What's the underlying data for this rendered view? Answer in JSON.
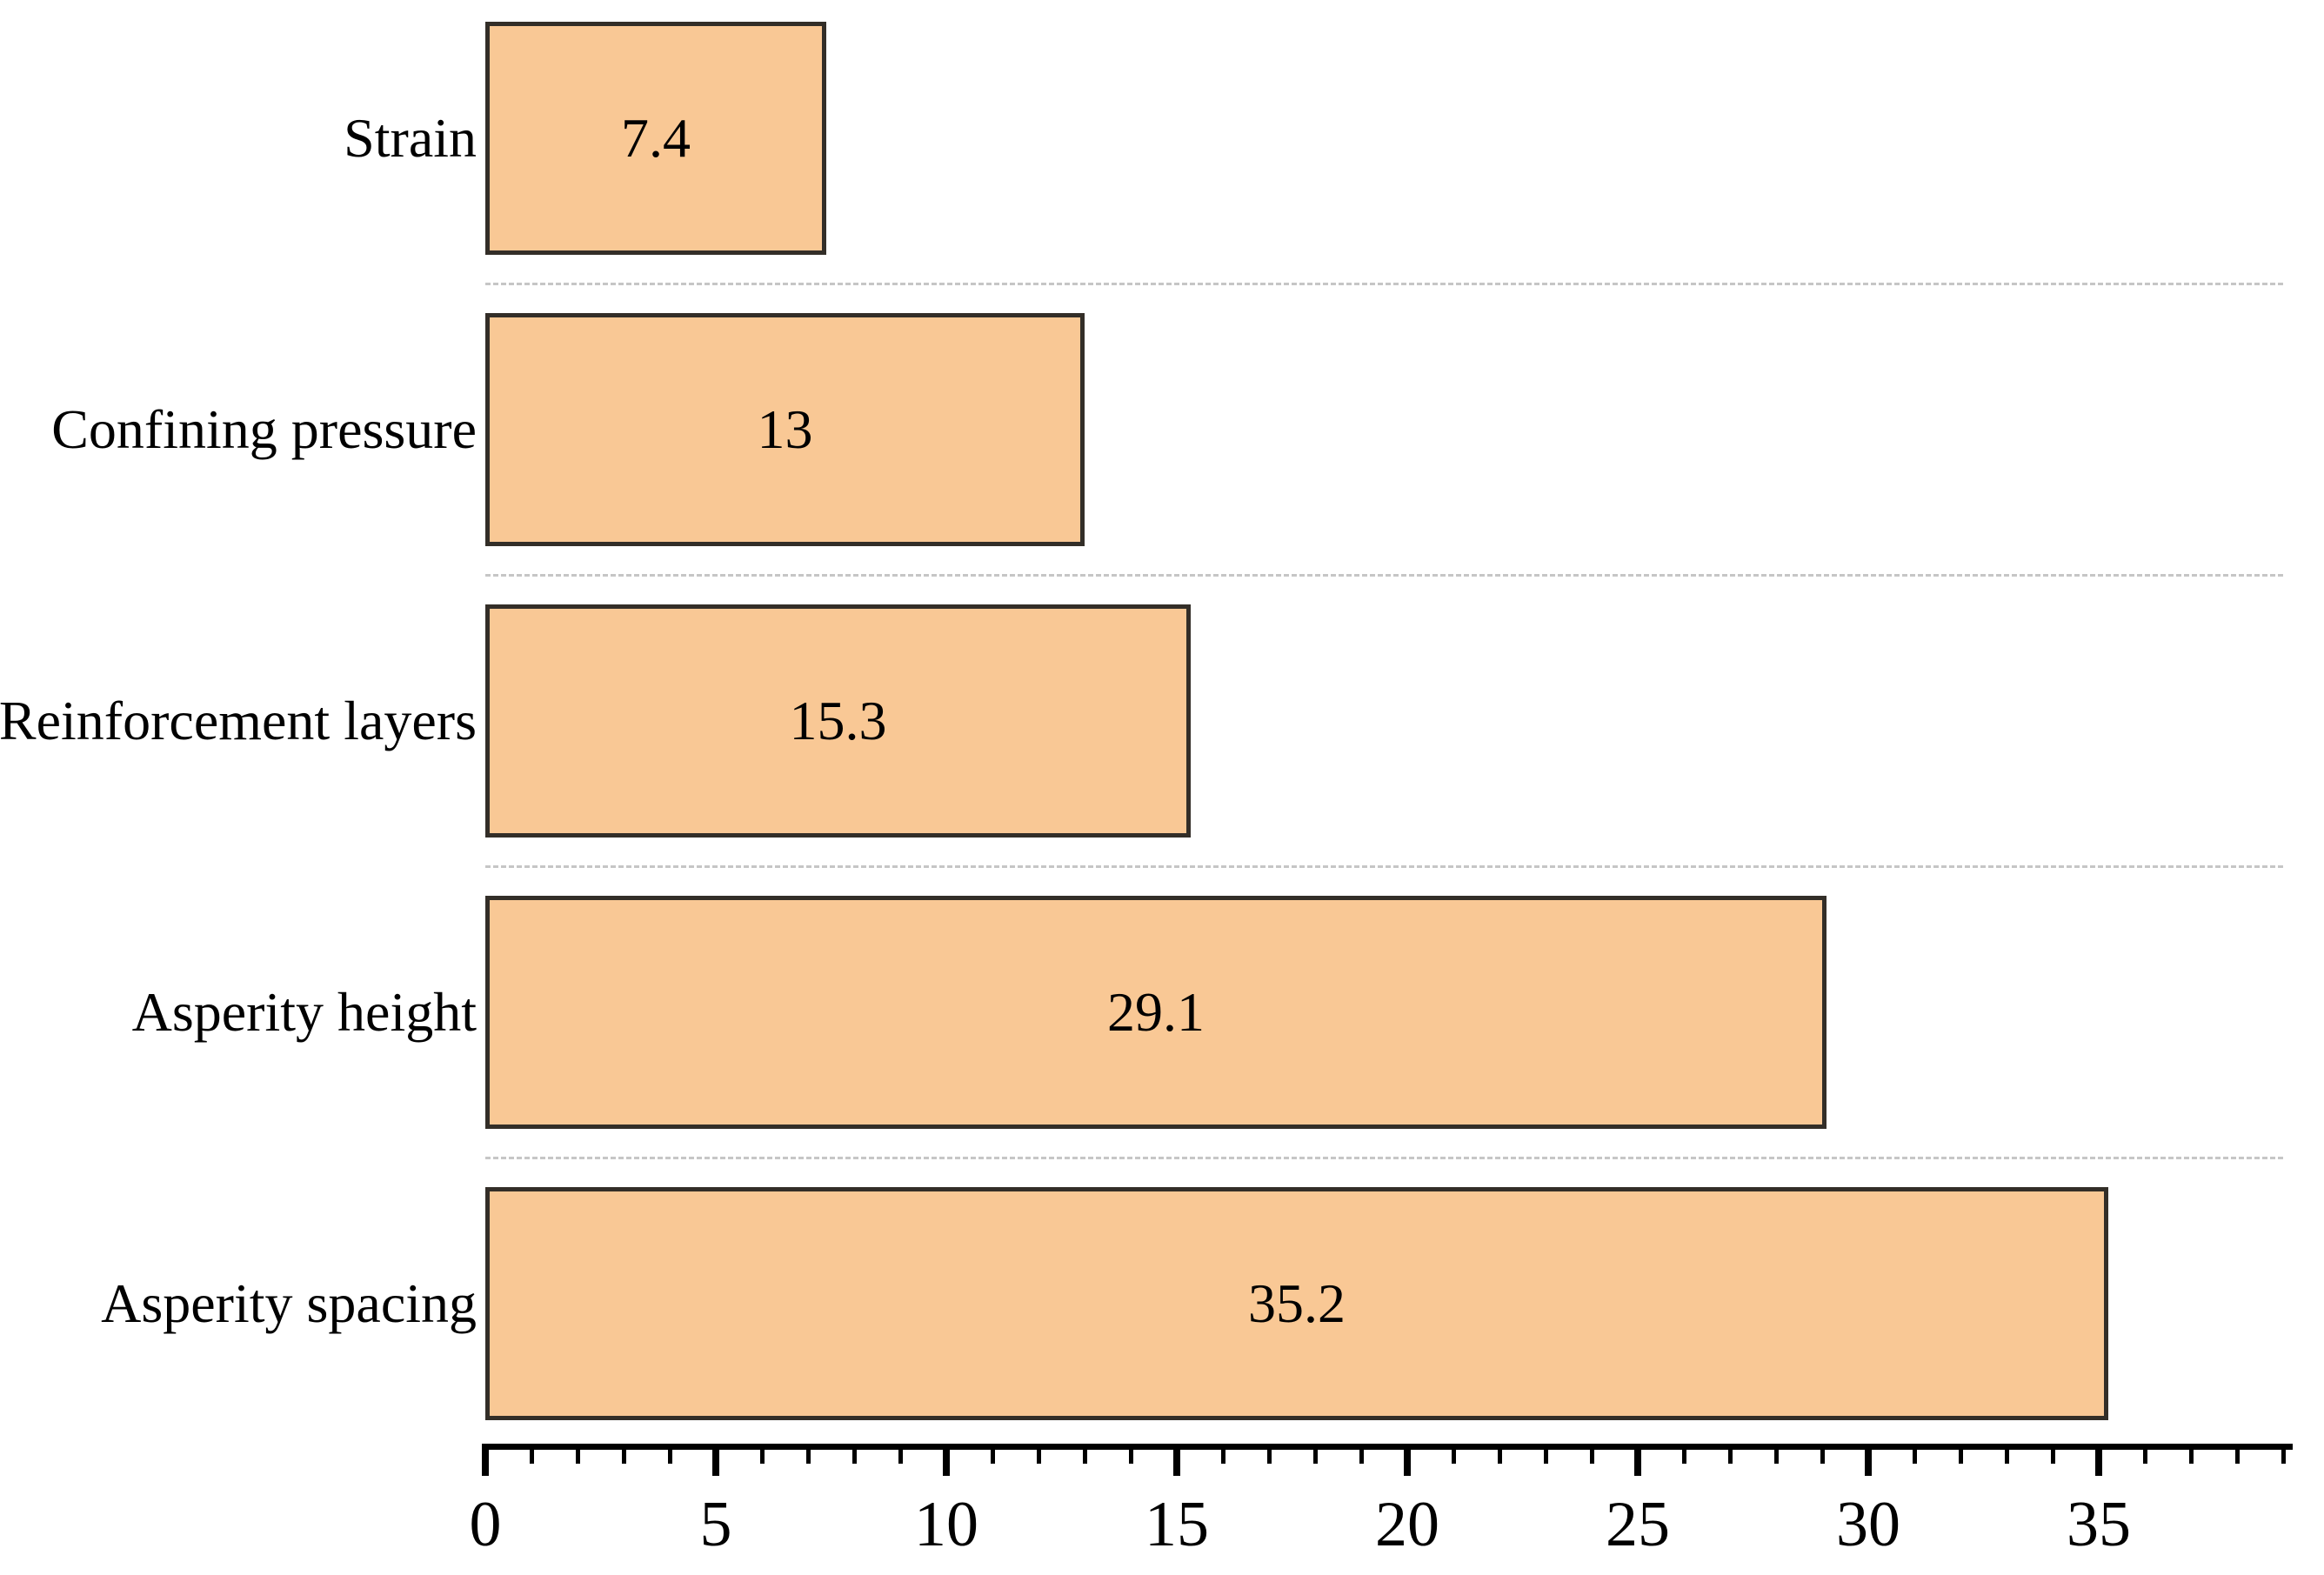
{
  "chart_data": {
    "type": "bar",
    "orientation": "horizontal",
    "title": "",
    "subtitle": "",
    "xlabel": "",
    "ylabel": "",
    "categories": [
      "Strain",
      "Confining pressure",
      "Reinforcement layers",
      "Asperity height",
      "Asperity spacing"
    ],
    "values": [
      7.4,
      13,
      15.3,
      29.1,
      35.2
    ],
    "value_labels": [
      "7.4",
      "13",
      "15.3",
      "29.1",
      "35.2"
    ],
    "category_order_note": "listed top to bottom as rendered; bars sorted ascending by value from top",
    "xlim": [
      0,
      39.2
    ],
    "x_major_ticks": [
      0,
      5,
      10,
      15,
      20,
      25,
      30,
      35
    ],
    "x_major_tick_labels": [
      "0",
      "5",
      "10",
      "15",
      "20",
      "25",
      "30",
      "35"
    ],
    "x_minor_tick_step": 1,
    "x_minor_tick_max": 39,
    "grid": "dashed horizontal separator lines between bars",
    "legend": "none",
    "value_label_position": "centered inside bar",
    "colors": {
      "bar_fill": "#F9C895",
      "bar_border": "#332E28",
      "separator": "#C6C6C6",
      "axis": "#000000",
      "text": "#000000",
      "background": "#FFFFFF"
    }
  }
}
